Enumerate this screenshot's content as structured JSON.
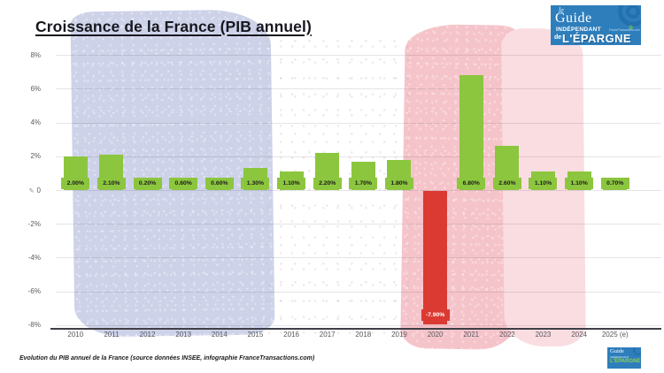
{
  "header": {
    "title": "Croissance de la France (PIB annuel)"
  },
  "logo": {
    "le": "le",
    "guide": "Guide",
    "independant": "INDÉPENDANT",
    "site": "FranceTransactions.com",
    "de": "de",
    "epargne": "L'ÉPARGNE"
  },
  "footer": {
    "caption": "Evolution du PIB annuel de la France (source données INSEE, infographie FranceTransactions.com)"
  },
  "colors": {
    "positive_bar": "#8cc63e",
    "negative_bar": "#db3a32",
    "positive_label_text": "#1c1c1c",
    "negative_label_text": "#ffffff",
    "blue_blob": "#cdd2e9",
    "pink_blob": "#f5c4ca",
    "pink_blob_light": "#fadde1",
    "logo_blue": "#2e7ebc"
  },
  "chart_data": {
    "type": "bar",
    "title": "Croissance de la France (PIB annuel)",
    "xlabel": "",
    "ylabel": "",
    "categories": [
      "2010",
      "2011",
      "2012",
      "2013",
      "2014",
      "2015",
      "2016",
      "2017",
      "2018",
      "2019",
      "2020",
      "2021",
      "2022",
      "2023",
      "2024",
      "2025 (e)"
    ],
    "values": [
      2.0,
      2.1,
      0.2,
      0.6,
      0.6,
      1.3,
      1.1,
      2.2,
      1.7,
      1.8,
      -7.9,
      6.8,
      2.6,
      1.1,
      1.1,
      0.7
    ],
    "value_labels": [
      "2.00%",
      "2.10%",
      "0.20%",
      "0.60%",
      "0.60%",
      "1.30%",
      "1.10%",
      "2.20%",
      "1.70%",
      "1.80%",
      "-7.90%",
      "6.80%",
      "2.60%",
      "1.10%",
      "1.10%",
      "0.70%"
    ],
    "yticks": [
      8,
      6,
      4,
      2,
      0,
      -2,
      -4,
      -6,
      -8
    ],
    "ytick_labels": [
      "8%",
      "6%",
      "4%",
      "2%",
      "0",
      "-2%",
      "-4%",
      "-6%",
      "-8%"
    ],
    "ylim": [
      -8.5,
      8.5
    ],
    "grid": true,
    "legend": false,
    "zero_tick_icon": "pencil-icon"
  }
}
